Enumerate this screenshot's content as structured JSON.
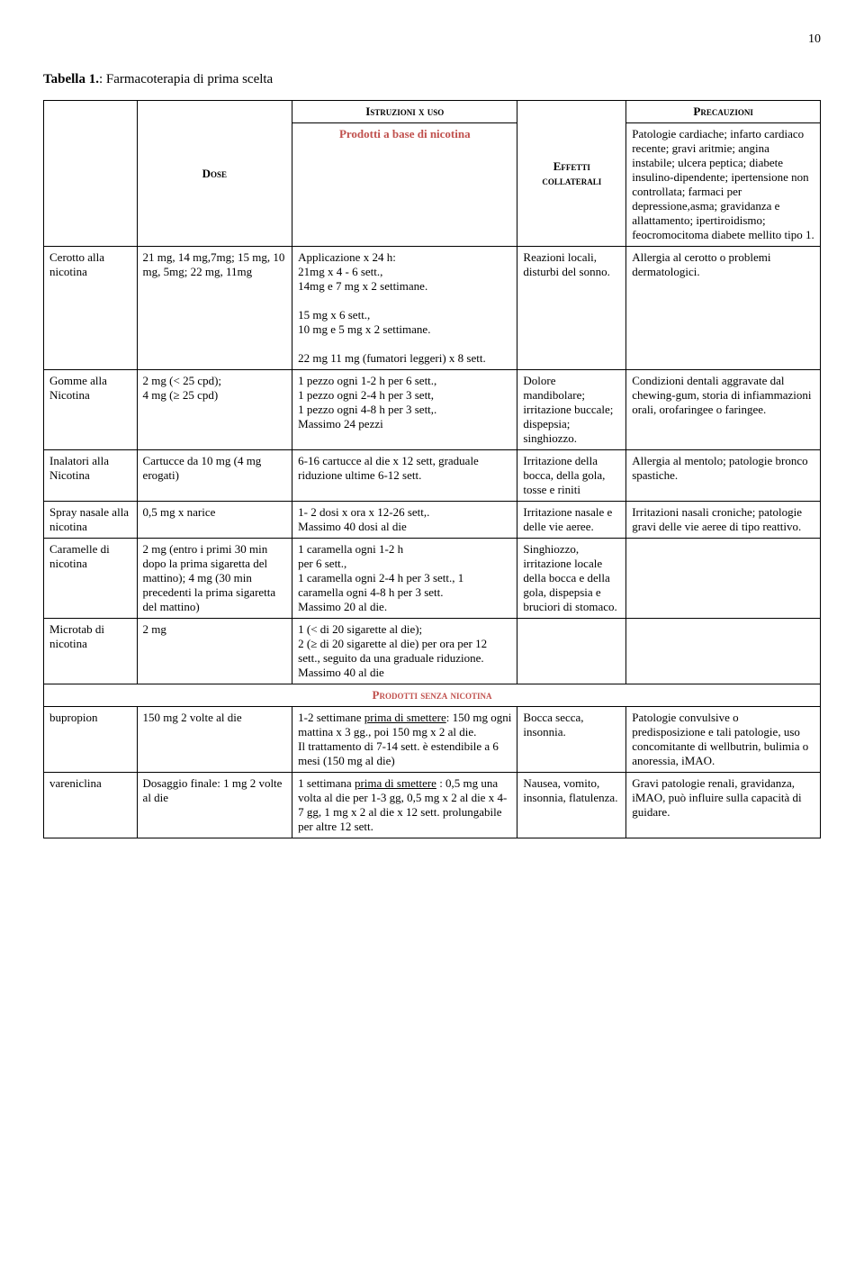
{
  "page_number": "10",
  "caption_label": "Tabella 1.",
  "caption_rest": ": Farmacoterapia di prima scelta",
  "headers": {
    "dose": "Dose",
    "istruzioni": "Istruzioni x uso",
    "effetti": "Effetti collaterali",
    "precauzioni": "Precauzioni"
  },
  "band_nicotina": "Prodotti a base di nicotina",
  "band_senza": "Prodotti  senza nicotina",
  "precauzioni_intro": "Patologie cardiache; infarto cardiaco recente; gravi aritmie; angina instabile; ulcera peptica; diabete insulino-dipendente; ipertensione non controllata; farmaci per depressione,asma; gravidanza e allattamento; ipertiroidismo; feocromocitoma diabete mellito tipo 1.",
  "rows": {
    "cerotto": {
      "name": "Cerotto alla nicotina",
      "dose": "21 mg, 14 mg,7mg; 15 mg, 10 mg, 5mg; 22 mg, 11mg",
      "istr_l1": "Applicazione x 24 h:",
      "istr_l2": "21mg x 4 - 6 sett.,",
      "istr_l3": "14mg e 7 mg x 2 settimane.",
      "istr_l4": "15 mg x 6 sett.,",
      "istr_l5": "10 mg e 5 mg x 2 settimane.",
      "istr_l6": "22 mg 11 mg (fumatori leggeri) x 8 sett.",
      "eff": "Reazioni locali, disturbi del sonno.",
      "prec": "Allergia al cerotto o problemi dermatologici."
    },
    "gomme": {
      "name": "Gomme alla Nicotina",
      "dose_l1": "2 mg (< 25 cpd);",
      "dose_l2": "4 mg (≥ 25 cpd)",
      "istr_l1": "1 pezzo ogni 1-2 h per 6 sett.,",
      "istr_l2": "1 pezzo ogni 2-4 h per 3 sett,",
      "istr_l3": "1 pezzo ogni 4-8 h per 3 sett,.",
      "istr_l4": " Massimo 24 pezzi",
      "eff": "Dolore mandibolare; irritazione buccale; dispepsia; singhiozzo.",
      "prec": "Condizioni dentali aggravate dal chewing-gum, storia di infiammazioni orali, orofaringee o faringee."
    },
    "inalatori": {
      "name": "Inalatori alla Nicotina",
      "dose": "Cartucce da 10 mg (4 mg erogati)",
      "istr": "6-16 cartucce al die x 12 sett, graduale riduzione ultime 6-12 sett.",
      "eff": "Irritazione della bocca, della gola, tosse e riniti",
      "prec": "Allergia al mentolo; patologie bronco spastiche."
    },
    "spray": {
      "name": "Spray nasale alla nicotina",
      "dose": "0,5 mg x narice",
      "istr_l1": "1- 2 dosi x ora x 12-26 sett,.",
      "istr_l2": "Massimo 40 dosi al die",
      "eff": "Irritazione nasale e delle vie aeree.",
      "prec": "Irritazioni nasali croniche; patologie gravi delle vie aeree di tipo reattivo."
    },
    "caramelle": {
      "name": "Caramelle di nicotina",
      "dose": "2 mg (entro i primi 30 min dopo la prima sigaretta del mattino); 4 mg (30 min precedenti la prima sigaretta del mattino)",
      "istr_l1": "1 caramella ogni 1-2 h",
      "istr_l2": "per 6 sett.,",
      "istr_l3": "1 caramella ogni 2-4 h per 3 sett., 1 caramella ogni 4-8 h per 3 sett.",
      "istr_l4": "Massimo 20 al die.",
      "eff": "Singhiozzo, irritazione locale della bocca e della gola, dispepsia e bruciori di stomaco.",
      "prec": ""
    },
    "microtab": {
      "name": "Microtab di nicotina",
      "dose": "2 mg",
      "istr_l1": "1 (< di 20 sigarette al die);",
      "istr_l2": "2 (≥ di 20 sigarette al die) per ora per 12 sett., seguito da una graduale riduzione.",
      "istr_l3": "Massimo 40 al die",
      "eff": "",
      "prec": ""
    },
    "bupropion": {
      "name": "bupropion",
      "dose": "150 mg 2 volte al die",
      "istr_pre": "1-2 settimane ",
      "istr_u1": "prima di smettere",
      "istr_post1": ": 150 mg ogni mattina x 3 gg., poi 150 mg x 2 al die.",
      "istr_post2": "Il trattamento di 7-14 sett. è estendibile a 6 mesi (150 mg al die)",
      "eff": "Bocca secca, insonnia.",
      "prec": "Patologie convulsive o predisposizione e tali patologie, uso concomitante di wellbutrin, bulimia o anoressia, iMAO."
    },
    "vareniclina": {
      "name": "vareniclina",
      "dose": "Dosaggio finale: 1 mg 2 volte al die",
      "istr_pre": "1 settimana ",
      "istr_u1": "prima di smettere",
      "istr_post": " : 0,5 mg una volta al die per 1-3 gg, 0,5 mg x 2 al die x 4-7 gg, 1 mg x 2 al die x 12 sett. prolungabile per altre 12 sett.",
      "eff": "Nausea, vomito, insonnia, flatulenza.",
      "prec": "Gravi patologie renali, gravidanza, iMAO, può influire sulla capacità di guidare."
    }
  }
}
